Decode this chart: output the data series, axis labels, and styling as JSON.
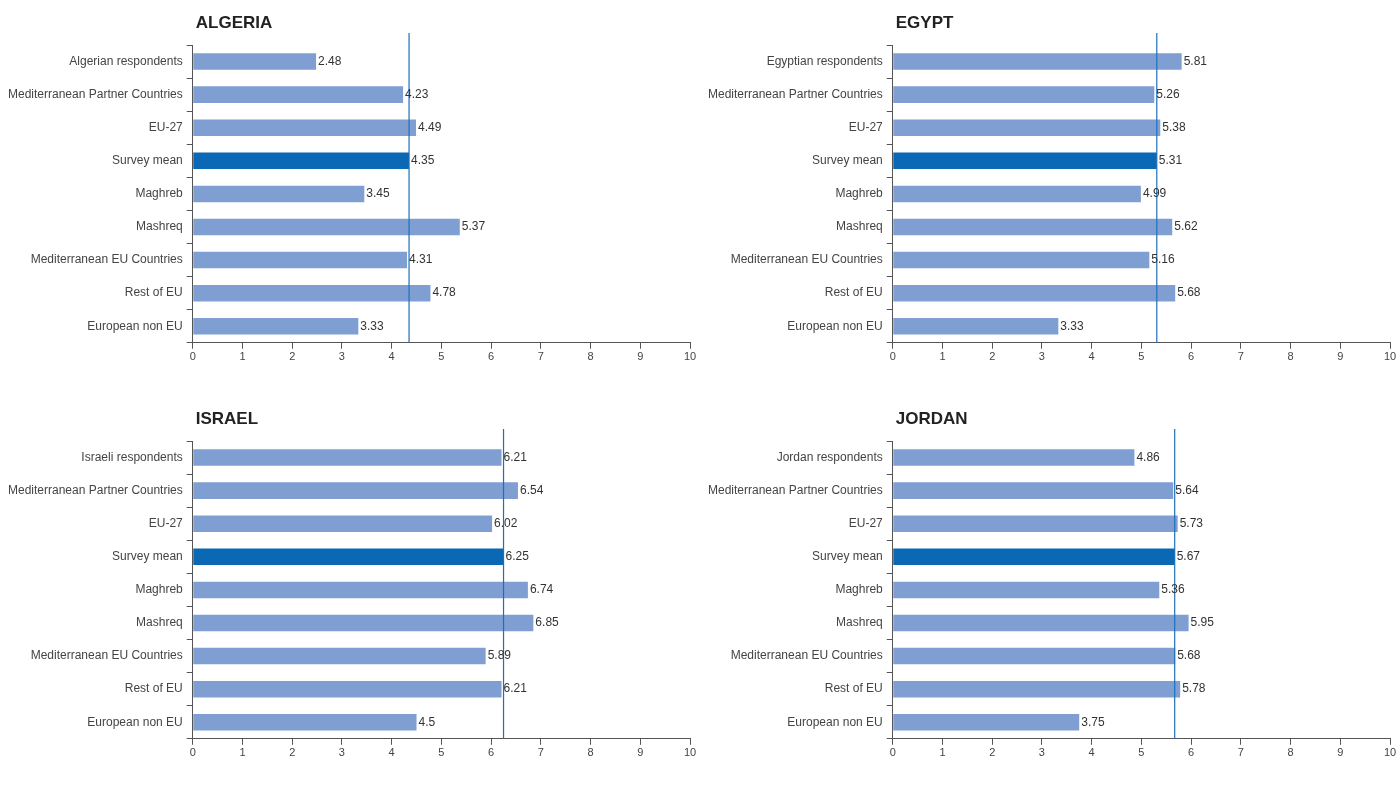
{
  "chart_data": [
    {
      "type": "bar",
      "orientation": "horizontal",
      "title": "ALGERIA",
      "categories": [
        "Algerian respondents",
        "Mediterranean Partner Countries",
        "EU-27",
        "Survey mean",
        "Maghreb",
        "Mashreq",
        "Mediterranean EU Countries",
        "Rest of EU",
        "European non EU"
      ],
      "values": [
        2.48,
        4.23,
        4.49,
        4.35,
        3.45,
        5.37,
        4.31,
        4.78,
        3.33
      ],
      "colors": [
        "#7f9fd3",
        "#7f9fd3",
        "#7f9fd3",
        "#0a68b4",
        "#7f9fd3",
        "#7f9fd3",
        "#7f9fd3",
        "#7f9fd3",
        "#7f9fd3"
      ],
      "xlim": [
        0,
        10
      ],
      "xticks": [
        0,
        1,
        2,
        3,
        4,
        5,
        6,
        7,
        8,
        9,
        10
      ],
      "data_labels": true,
      "ref_lines": [
        {
          "axis": "x",
          "value": 4.35,
          "color": "#1f6fb8"
        }
      ]
    },
    {
      "type": "bar",
      "orientation": "horizontal",
      "title": "EGYPT",
      "categories": [
        "Egyptian respondents",
        "Mediterranean Partner Countries",
        "EU-27",
        "Survey mean",
        "Maghreb",
        "Mashreq",
        "Mediterranean EU Countries",
        "Rest of EU",
        "European non EU"
      ],
      "values": [
        5.81,
        5.26,
        5.38,
        5.31,
        4.99,
        5.62,
        5.16,
        5.68,
        3.33
      ],
      "colors": [
        "#7f9fd3",
        "#7f9fd3",
        "#7f9fd3",
        "#0a68b4",
        "#7f9fd3",
        "#7f9fd3",
        "#7f9fd3",
        "#7f9fd3",
        "#7f9fd3"
      ],
      "xlim": [
        0,
        10
      ],
      "xticks": [
        0,
        1,
        2,
        3,
        4,
        5,
        6,
        7,
        8,
        9,
        10
      ],
      "data_labels": true,
      "ref_lines": [
        {
          "axis": "x",
          "value": 5.31,
          "color": "#1f6fb8"
        }
      ]
    },
    {
      "type": "bar",
      "orientation": "horizontal",
      "title": "ISRAEL",
      "categories": [
        "Israeli respondents",
        "Mediterranean Partner Countries",
        "EU-27",
        "Survey mean",
        "Maghreb",
        "Mashreq",
        "Mediterranean EU Countries",
        "Rest of EU",
        "European non EU"
      ],
      "values": [
        6.21,
        6.54,
        6.02,
        6.25,
        6.74,
        6.85,
        5.89,
        6.21,
        4.5
      ],
      "colors": [
        "#7f9fd3",
        "#7f9fd3",
        "#7f9fd3",
        "#0a68b4",
        "#7f9fd3",
        "#7f9fd3",
        "#7f9fd3",
        "#7f9fd3",
        "#7f9fd3"
      ],
      "xlim": [
        0,
        10
      ],
      "xticks": [
        0,
        1,
        2,
        3,
        4,
        5,
        6,
        7,
        8,
        9,
        10
      ],
      "data_labels": true,
      "ref_lines": [
        {
          "axis": "x",
          "value": 6.25,
          "color": "#1f6fb8"
        }
      ]
    },
    {
      "type": "bar",
      "orientation": "horizontal",
      "title": "JORDAN",
      "categories": [
        "Jordan respondents",
        "Mediterranean Partner Countries",
        "EU-27",
        "Survey mean",
        "Maghreb",
        "Mashreq",
        "Mediterranean EU Countries",
        "Rest of EU",
        "European non EU"
      ],
      "values": [
        4.86,
        5.64,
        5.73,
        5.67,
        5.36,
        5.95,
        5.68,
        5.78,
        3.75
      ],
      "colors": [
        "#7f9fd3",
        "#7f9fd3",
        "#7f9fd3",
        "#0a68b4",
        "#7f9fd3",
        "#7f9fd3",
        "#7f9fd3",
        "#7f9fd3",
        "#7f9fd3"
      ],
      "xlim": [
        0,
        10
      ],
      "xticks": [
        0,
        1,
        2,
        3,
        4,
        5,
        6,
        7,
        8,
        9,
        10
      ],
      "data_labels": true,
      "ref_lines": [
        {
          "axis": "x",
          "value": 5.67,
          "color": "#1f6fb8"
        }
      ]
    }
  ]
}
